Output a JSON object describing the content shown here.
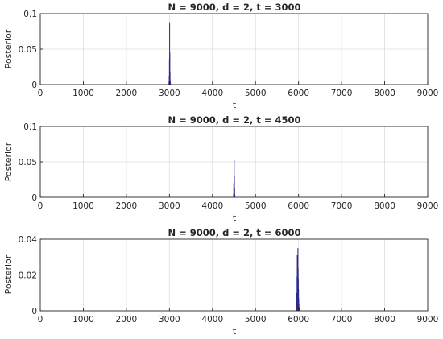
{
  "chart_data": [
    {
      "type": "bar",
      "title": "N = 9000, d = 2, t = 3000",
      "xlabel": "t",
      "ylabel": "Posterior",
      "xlim": [
        0,
        9000
      ],
      "ylim": [
        0,
        0.1
      ],
      "xticks": [
        "0",
        "1000",
        "2000",
        "3000",
        "4000",
        "5000",
        "6000",
        "7000",
        "8000",
        "9000"
      ],
      "yticks": [
        "0",
        "0.05",
        "0.1"
      ],
      "grid": true,
      "color": "#2e2a8c",
      "x": [
        2990,
        2995,
        3000,
        3005,
        3010,
        3015,
        3020,
        3025
      ],
      "values": [
        0.004,
        0.012,
        0.036,
        0.088,
        0.045,
        0.018,
        0.006,
        0.002
      ]
    },
    {
      "type": "bar",
      "title": "N = 9000, d = 2, t = 4500",
      "xlabel": "t",
      "ylabel": "Posterior",
      "xlim": [
        0,
        9000
      ],
      "ylim": [
        0,
        0.1
      ],
      "xticks": [
        "0",
        "1000",
        "2000",
        "3000",
        "4000",
        "5000",
        "6000",
        "7000",
        "8000",
        "9000"
      ],
      "yticks": [
        "0",
        "0.05",
        "0.1"
      ],
      "grid": true,
      "color": "#2e2a8c",
      "x": [
        4490,
        4495,
        4500,
        4505,
        4510,
        4515,
        4520
      ],
      "values": [
        0.005,
        0.02,
        0.073,
        0.052,
        0.03,
        0.013,
        0.004
      ]
    },
    {
      "type": "bar",
      "title": "N = 9000, d = 2, t = 6000",
      "xlabel": "t",
      "ylabel": "Posterior",
      "xlim": [
        0,
        9000
      ],
      "ylim": [
        0,
        0.04
      ],
      "xticks": [
        "0",
        "1000",
        "2000",
        "3000",
        "4000",
        "5000",
        "6000",
        "7000",
        "8000",
        "9000"
      ],
      "yticks": [
        "0",
        "0.02",
        "0.04"
      ],
      "grid": true,
      "color": "#2e2a8c",
      "x": [
        5955,
        5960,
        5965,
        5970,
        5975,
        5980,
        5985,
        5990,
        5995,
        6000,
        6005,
        6010,
        6015
      ],
      "values": [
        0.004,
        0.01,
        0.019,
        0.031,
        0.025,
        0.018,
        0.035,
        0.024,
        0.018,
        0.012,
        0.007,
        0.004,
        0.002
      ]
    }
  ]
}
